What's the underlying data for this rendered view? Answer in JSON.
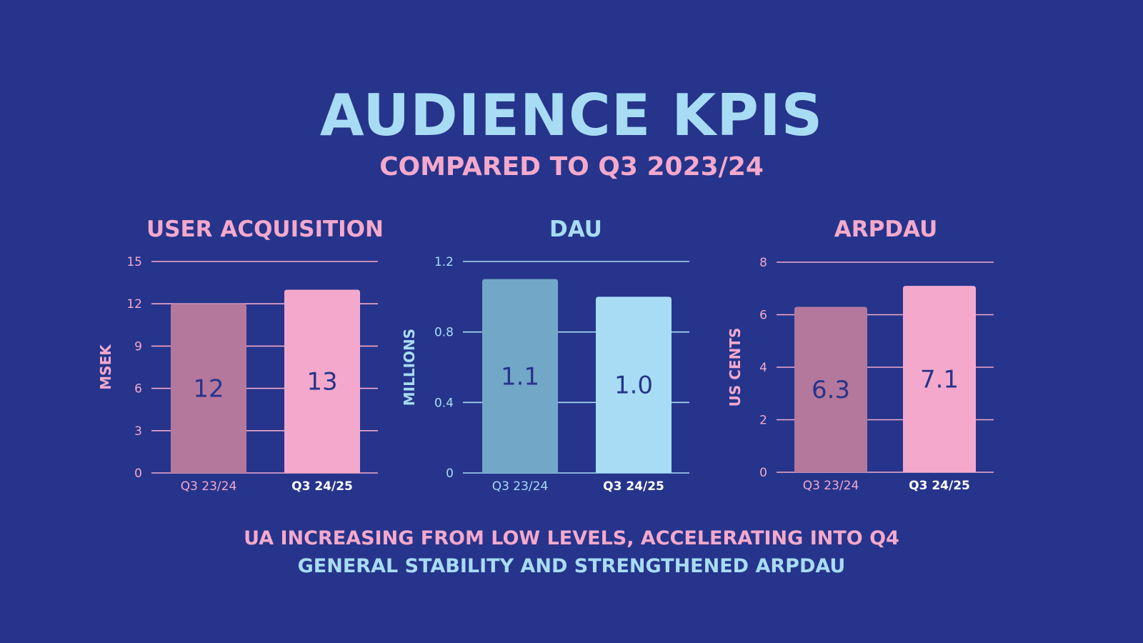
{
  "title": "AUDIENCE KPIS",
  "subtitle": "COMPARED TO Q3 2023/24",
  "footer": {
    "line1": "UA INCREASING FROM LOW LEVELS, ACCELERATING INTO Q4",
    "line2": "GENERAL STABILITY AND STRENGTHENED ARPDAU"
  },
  "colors": {
    "background": "#26348B",
    "title": "#A8DCF5",
    "subtitle": "#F4A9CC",
    "footer_line1": "#F4A9CC",
    "footer_line2": "#A8DCF5"
  },
  "chart_data": [
    {
      "type": "bar",
      "title": "USER ACQUISITION",
      "ylabel": "MSEK",
      "categories": [
        "Q3 23/24",
        "Q3 24/25"
      ],
      "values": [
        12,
        13
      ],
      "value_labels": [
        "12",
        "13"
      ],
      "ylim": [
        0,
        15
      ],
      "yticks": [
        "0",
        "3",
        "6",
        "9",
        "12",
        "15"
      ],
      "grid": true,
      "colors": {
        "accent": "#F4A9CC",
        "bars": [
          "#B4789C",
          "#F4A9CC"
        ],
        "label": "#26348B"
      }
    },
    {
      "type": "bar",
      "title": "DAU",
      "ylabel": "MILLIONS",
      "categories": [
        "Q3 23/24",
        "Q3 24/25"
      ],
      "values": [
        1.1,
        1.0
      ],
      "value_labels": [
        "1.1",
        "1.0"
      ],
      "ylim": [
        0,
        1.2
      ],
      "yticks": [
        "0",
        "0.4",
        "0.8",
        "1.2"
      ],
      "grid": true,
      "colors": {
        "accent": "#A8DCF5",
        "bars": [
          "#73A7C8",
          "#A8DCF5"
        ],
        "label": "#26348B"
      }
    },
    {
      "type": "bar",
      "title": "ARPDAU",
      "ylabel": "US CENTS",
      "categories": [
        "Q3 23/24",
        "Q3 24/25"
      ],
      "values": [
        6.3,
        7.1
      ],
      "value_labels": [
        "6.3",
        "7.1"
      ],
      "ylim": [
        0,
        8
      ],
      "yticks": [
        "0",
        "2",
        "4",
        "6",
        "8"
      ],
      "grid": true,
      "colors": {
        "accent": "#F4A9CC",
        "bars": [
          "#B4789C",
          "#F4A9CC"
        ],
        "label": "#26348B"
      }
    }
  ]
}
